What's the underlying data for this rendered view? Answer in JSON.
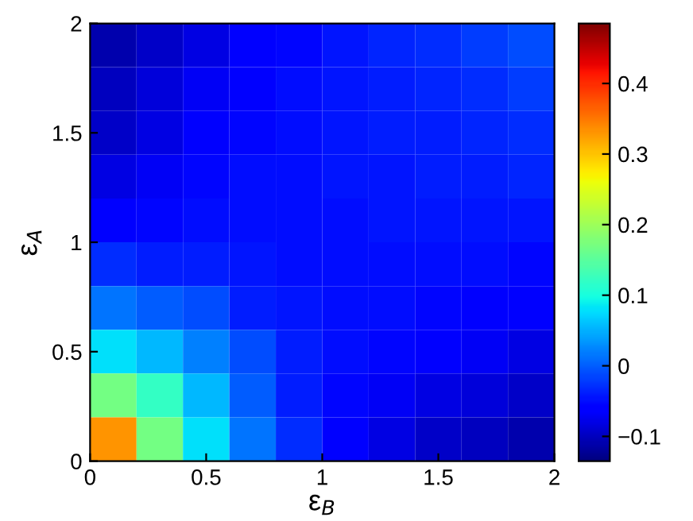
{
  "chart_data": {
    "type": "heatmap",
    "xlabel": "ε$_{B}$",
    "ylabel": "ε$_{A}$",
    "x": [
      0.1,
      0.3,
      0.5,
      0.7,
      0.9,
      1.1,
      1.3,
      1.5,
      1.7,
      1.9
    ],
    "y": [
      1.9,
      1.7,
      1.5,
      1.3,
      1.1,
      0.9,
      0.7,
      0.5,
      0.3,
      0.1
    ],
    "cells": [
      [
        -0.11,
        -0.095,
        -0.08,
        -0.065,
        -0.055,
        -0.045,
        -0.035,
        -0.03,
        -0.02,
        -0.01
      ],
      [
        -0.1,
        -0.085,
        -0.07,
        -0.06,
        -0.05,
        -0.045,
        -0.04,
        -0.035,
        -0.03,
        -0.02
      ],
      [
        -0.095,
        -0.08,
        -0.065,
        -0.055,
        -0.05,
        -0.045,
        -0.04,
        -0.04,
        -0.035,
        -0.03
      ],
      [
        -0.08,
        -0.07,
        -0.055,
        -0.05,
        -0.05,
        -0.045,
        -0.045,
        -0.04,
        -0.04,
        -0.035
      ],
      [
        -0.065,
        -0.055,
        -0.05,
        -0.05,
        -0.05,
        -0.05,
        -0.045,
        -0.045,
        -0.045,
        -0.045
      ],
      [
        -0.03,
        -0.04,
        -0.04,
        -0.045,
        -0.05,
        -0.05,
        -0.05,
        -0.05,
        -0.05,
        -0.055
      ],
      [
        0.015,
        0.0,
        -0.01,
        -0.04,
        -0.045,
        -0.05,
        -0.05,
        -0.055,
        -0.06,
        -0.065
      ],
      [
        0.08,
        0.055,
        0.02,
        -0.01,
        -0.04,
        -0.05,
        -0.055,
        -0.065,
        -0.07,
        -0.08
      ],
      [
        0.17,
        0.12,
        0.055,
        0.0,
        -0.04,
        -0.055,
        -0.07,
        -0.08,
        -0.085,
        -0.095
      ],
      [
        0.33,
        0.17,
        0.08,
        0.015,
        -0.03,
        -0.065,
        -0.08,
        -0.095,
        -0.1,
        -0.11
      ]
    ],
    "xlim": [
      0,
      2
    ],
    "ylim": [
      0,
      2
    ],
    "xticks": [
      0,
      0.5,
      1,
      1.5,
      2
    ],
    "yticks": [
      0,
      0.5,
      1,
      1.5,
      2
    ],
    "clim": [
      -0.135,
      0.485
    ],
    "cticks": [
      -0.1,
      0,
      0.1,
      0.2,
      0.3,
      0.4
    ]
  }
}
